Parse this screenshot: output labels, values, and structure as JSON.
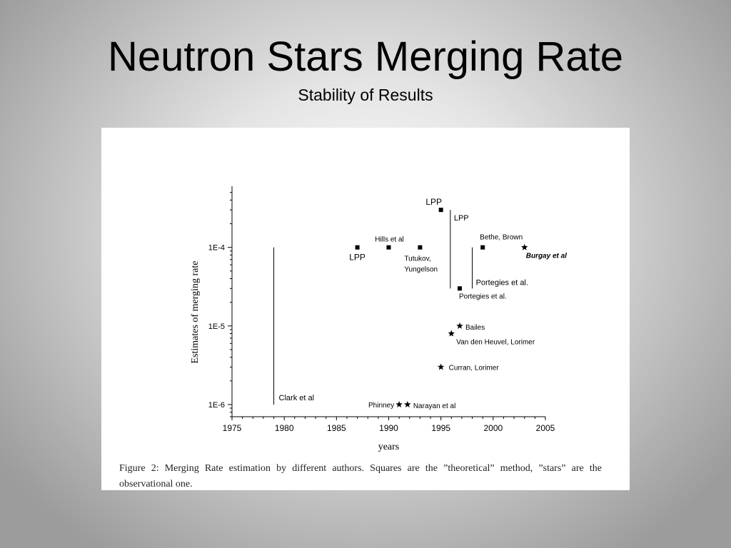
{
  "slide": {
    "title": "Neutron Stars Merging Rate",
    "subtitle": "Stability of Results"
  },
  "figure": {
    "caption": "Figure 2: Merging Rate estimation by different authors. Squares are the ”theoretical” method, ”stars” are the observational one."
  },
  "chart_data": {
    "type": "scatter",
    "title": "",
    "xlabel": "years",
    "ylabel": "Estimates of merging rate",
    "xlim": [
      1975,
      2005
    ],
    "ylim": [
      7e-07,
      0.0006
    ],
    "yscale": "log",
    "grid": false,
    "xticks": [
      1975,
      1980,
      1985,
      1990,
      1995,
      2000,
      2005
    ],
    "xtick_labels": [
      "1975",
      "1980",
      "1985",
      "1990",
      "1995",
      "2000",
      "2005"
    ],
    "yticks": [
      1e-06,
      1e-05,
      0.0001
    ],
    "ytick_labels": [
      "1E-6",
      "1E-5",
      "1E-4"
    ],
    "series": [
      {
        "marker": "square",
        "points": [
          {
            "x": 1987,
            "y": 0.0001,
            "label": "LPP"
          },
          {
            "x": 1990,
            "y": 0.0001,
            "label": "Hills et al"
          },
          {
            "x": 1993,
            "y": 0.0001,
            "label": "Tutukov,\nYungelson"
          },
          {
            "x": 1995,
            "y": 0.0003,
            "label": "LPP"
          },
          {
            "x": 1996.8,
            "y": 3e-05,
            "label": "Portegies et al."
          },
          {
            "x": 1999,
            "y": 0.0001,
            "label": "Bethe, Brown"
          }
        ]
      },
      {
        "marker": "star",
        "points": [
          {
            "x": 1995,
            "y": 3e-06,
            "label": "Curran, Lorimer"
          },
          {
            "x": 1996,
            "y": 8e-06,
            "label": "Van den Heuvel, Lorimer"
          },
          {
            "x": 1996.8,
            "y": 1e-05,
            "label": "Bailes"
          },
          {
            "x": 1991,
            "y": 1e-06,
            "label": "Phinney"
          },
          {
            "x": 1991.8,
            "y": 1e-06,
            "label": "Narayan et al"
          },
          {
            "x": 2003,
            "y": 0.0001,
            "label": "Burgay et al"
          }
        ]
      }
    ],
    "ranges": [
      {
        "x": 1979,
        "y_low": 1e-06,
        "y_high": 0.0001,
        "label": "Clark et al"
      },
      {
        "x": 1995.9,
        "y_low": 3e-05,
        "y_high": 0.0003,
        "label": "LPP"
      },
      {
        "x": 1998,
        "y_low": 3e-05,
        "y_high": 0.0001,
        "label": "Portegies et al."
      }
    ]
  }
}
